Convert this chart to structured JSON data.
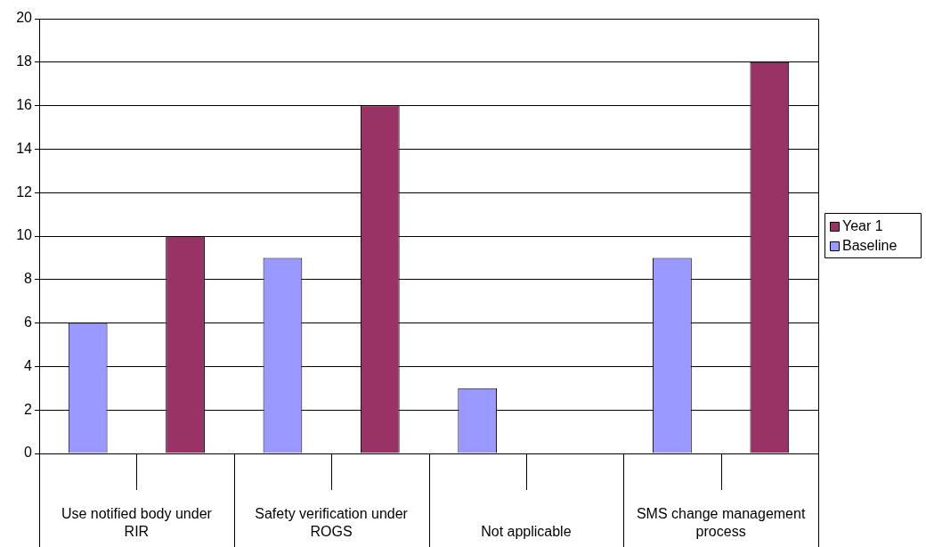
{
  "chart_data": {
    "type": "bar",
    "categories": [
      "Use notified body under RIR",
      "Safety verification under ROGS",
      "Not applicable",
      "SMS change management process"
    ],
    "series": [
      {
        "name": "Baseline",
        "color": "#9999ff",
        "values": [
          6,
          9,
          3,
          9
        ]
      },
      {
        "name": "Year 1",
        "color": "#993366",
        "values": [
          10,
          16,
          null,
          18
        ]
      }
    ],
    "ylim": [
      0,
      20
    ],
    "yticks": [
      0,
      2,
      4,
      6,
      8,
      10,
      12,
      14,
      16,
      18,
      20
    ],
    "grid": "y",
    "legend": "right"
  }
}
